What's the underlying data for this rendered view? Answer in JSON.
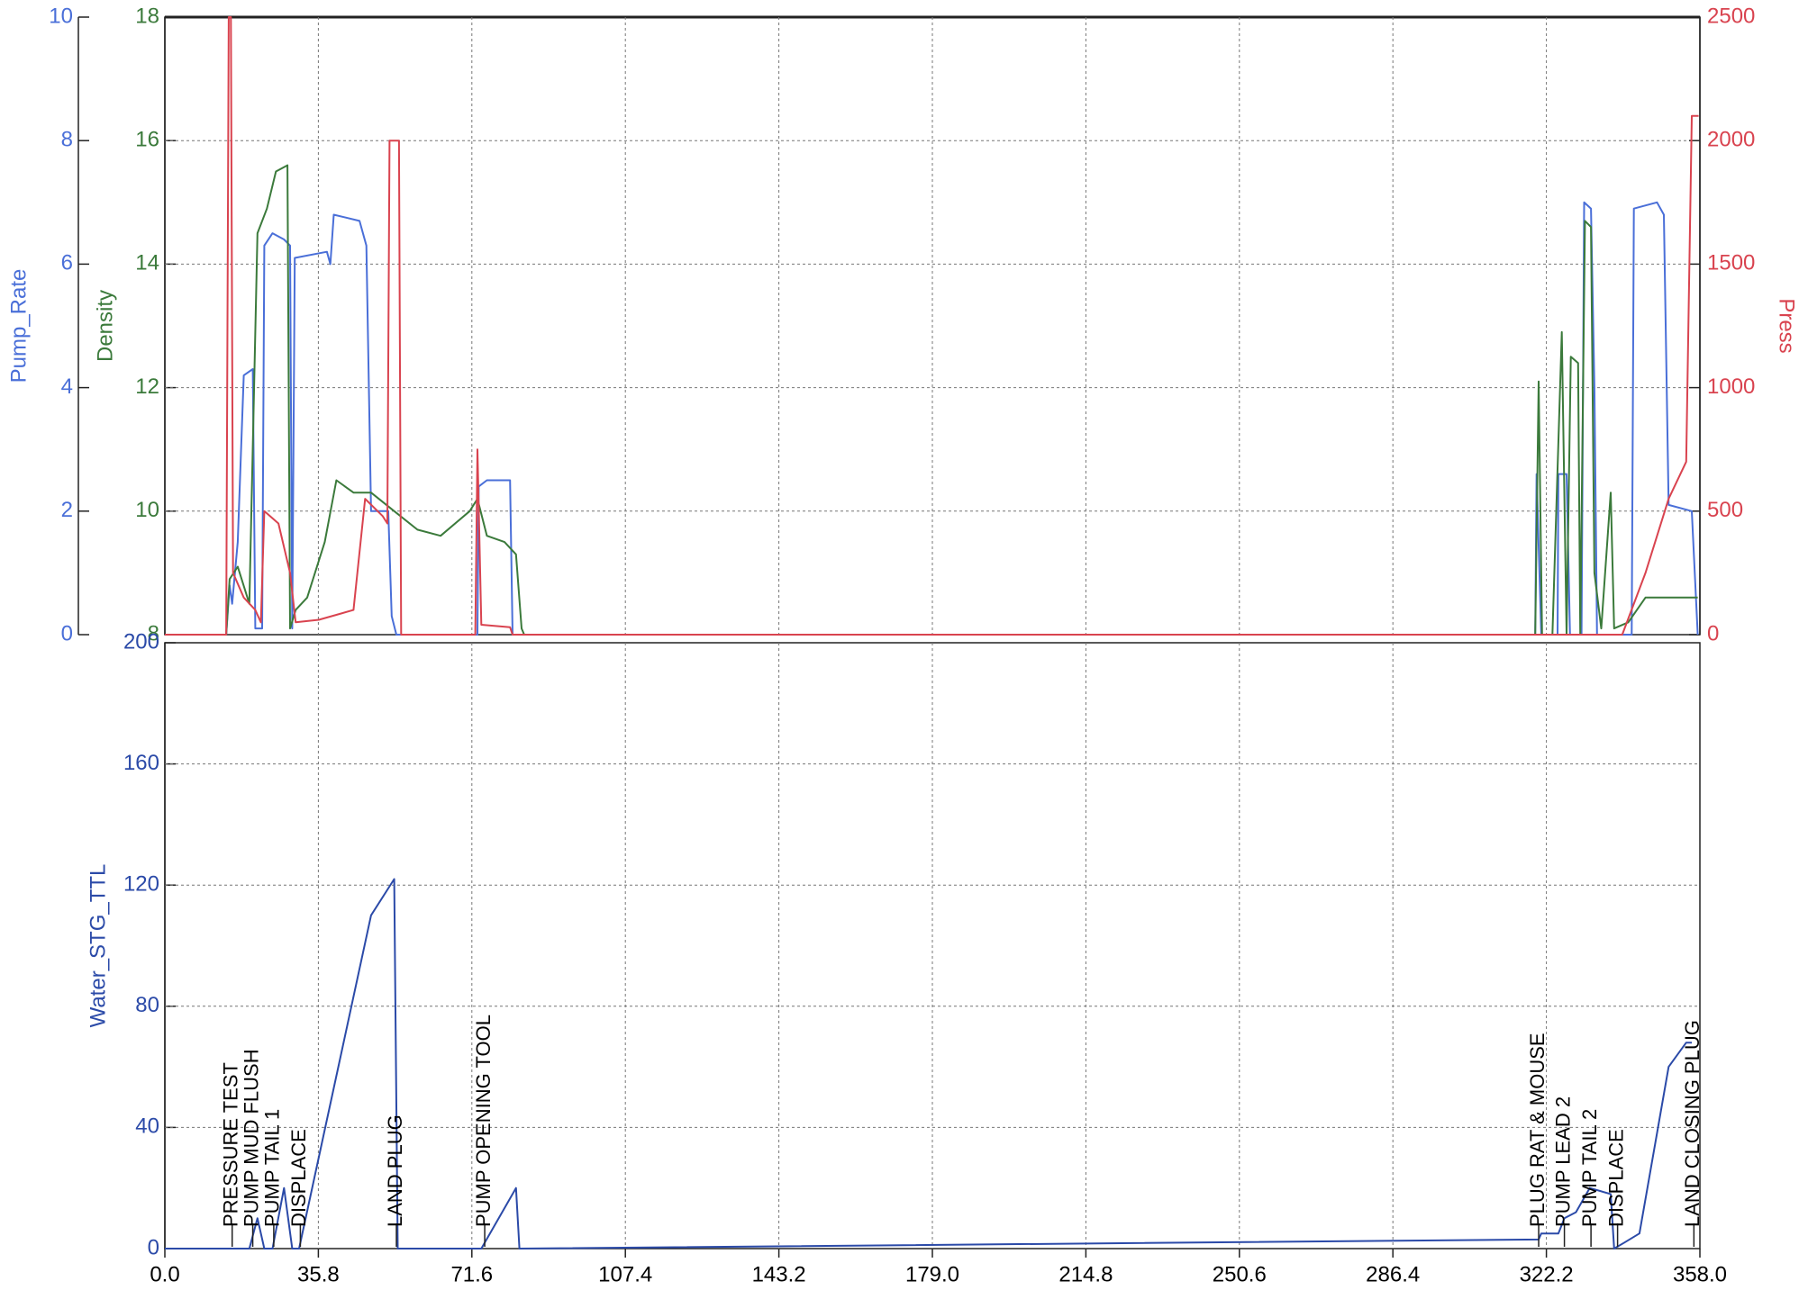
{
  "chart_data": [
    {
      "type": "line",
      "xlim": [
        0,
        358
      ],
      "ylim": [
        0,
        10
      ],
      "yticks": [
        0,
        2,
        4,
        6,
        8,
        10
      ],
      "y2lim": [
        8,
        18
      ],
      "y2ticks": [
        8,
        10,
        12,
        14,
        16,
        18
      ],
      "y3lim": [
        0,
        2500
      ],
      "y3ticks": [
        0,
        500,
        1000,
        1500,
        2000,
        2500
      ],
      "grid": true,
      "series": [
        {
          "name": "Pump_Rate",
          "color": "#4a6fd8",
          "axis": "y",
          "x": [
            0,
            14.3,
            15.1,
            15.7,
            17.0,
            18.4,
            20.5,
            21.1,
            22.7,
            23.2,
            25.1,
            27.8,
            29.2,
            29.7,
            30.3,
            37.8,
            38.6,
            39.4,
            45.4,
            47.0,
            48.1,
            52.1,
            52.9,
            54.0,
            72.9,
            73.2,
            75.1,
            80.5,
            81.1,
            319.6,
            319.9,
            321.0,
            324.8,
            325.0,
            326.9,
            327.7,
            330.4,
            331.0,
            332.6,
            333.4,
            334.0,
            342.1,
            342.6,
            348.0,
            349.6,
            350.7,
            356.1,
            357.5
          ],
          "values": [
            0,
            0,
            0.8,
            0.5,
            1.5,
            4.2,
            4.3,
            0.1,
            0.1,
            6.3,
            6.5,
            6.4,
            6.3,
            0.1,
            6.1,
            6.2,
            6.0,
            6.8,
            6.7,
            6.3,
            2.0,
            2.0,
            0.3,
            0,
            0,
            2.4,
            2.5,
            2.5,
            0,
            0,
            2.6,
            0,
            0,
            2.6,
            2.6,
            0,
            0,
            7.0,
            6.9,
            4.0,
            0,
            0,
            6.9,
            7.0,
            6.8,
            2.1,
            2.0,
            0
          ]
        },
        {
          "name": "Density",
          "color": "#3b7a3b",
          "axis": "y2",
          "x": [
            0,
            14.3,
            15.1,
            17.0,
            19.7,
            21.6,
            23.8,
            25.9,
            28.6,
            29.2,
            30.5,
            33.2,
            37.3,
            40.0,
            44.0,
            48.1,
            53.5,
            58.9,
            64.3,
            71.1,
            72.9,
            75.1,
            79.2,
            81.9,
            83.2,
            83.8,
            319.6,
            320.4,
            321.2,
            323.6,
            325.8,
            326.9,
            327.9,
            329.6,
            330.1,
            331.2,
            332.6,
            333.4,
            335.0,
            337.2,
            338.0,
            341.3,
            345.3,
            357.5
          ],
          "values": [
            8,
            8,
            8.9,
            9.1,
            8.5,
            14.5,
            14.9,
            15.5,
            15.6,
            8.1,
            8.4,
            8.6,
            9.5,
            10.5,
            10.3,
            10.3,
            10.0,
            9.7,
            9.6,
            10.0,
            10.2,
            9.6,
            9.5,
            9.3,
            8.1,
            8.0,
            8.0,
            12.1,
            8.0,
            8.0,
            12.9,
            8.0,
            12.5,
            12.4,
            8.0,
            14.7,
            14.6,
            9.0,
            8.1,
            10.3,
            8.1,
            8.2,
            8.6,
            8.6
          ]
        },
        {
          "name": "Press",
          "color": "#d9434f",
          "axis": "y3",
          "x": [
            0,
            14.3,
            14.9,
            15.4,
            15.9,
            18.4,
            21.1,
            22.4,
            23.2,
            26.5,
            29.2,
            30.5,
            35.9,
            40.0,
            44.0,
            46.7,
            50.8,
            51.9,
            52.4,
            54.6,
            55.1,
            72.4,
            72.9,
            73.8,
            80.5,
            81.1,
            339.9,
            345.3,
            350.7,
            354.8,
            356.1,
            357.7
          ],
          "values": [
            0,
            0,
            2500,
            2500,
            250,
            150,
            100,
            50,
            500,
            450,
            250,
            50,
            60,
            80,
            100,
            550,
            480,
            450,
            2000,
            2000,
            0,
            0,
            750,
            40,
            30,
            0,
            0,
            250,
            550,
            700,
            2100,
            2100
          ]
        }
      ]
    },
    {
      "type": "line",
      "xlim": [
        0,
        358
      ],
      "xticks": [
        {
          "value": 0,
          "label": "0.0"
        },
        35.8,
        71.6,
        107.4,
        143.2,
        {
          "value": 179,
          "label": "179.0"
        },
        214.8,
        250.6,
        286.4,
        322.2,
        {
          "value": 358,
          "label": "358.0"
        }
      ],
      "ylim": [
        0,
        200
      ],
      "yticks": [
        0,
        40,
        80,
        120,
        160,
        200
      ],
      "grid": true,
      "series": [
        {
          "name": "Water_STG_TTL",
          "color": "#2b4aa8",
          "axis": "y",
          "x": [
            0,
            15.7,
            19.7,
            21.6,
            23.2,
            25.1,
            27.8,
            29.7,
            31.3,
            48.1,
            53.5,
            54.3,
            73.8,
            81.9,
            82.7,
            320.4,
            321.0,
            325.0,
            326.4,
            329.1,
            332.3,
            337.2,
            338.0,
            340.4,
            343.9,
            350.7,
            354.8,
            356.1
          ],
          "values": [
            0,
            0,
            0,
            10,
            0,
            0,
            20,
            0,
            0,
            110,
            122,
            0,
            0,
            20,
            0,
            3,
            5,
            5,
            10,
            12,
            20,
            18,
            0,
            2,
            5,
            60,
            68,
            68
          ]
        }
      ],
      "annotations": [
        {
          "text": "PRESSURE TEST",
          "x": 15.7
        },
        {
          "text": "PUMP MUD FLUSH",
          "x": 20.5
        },
        {
          "text": "PUMP TAIL 1",
          "x": 25.4
        },
        {
          "text": "DISPLACE",
          "x": 31.6
        },
        {
          "text": "LAND PLUG",
          "x": 54.0
        },
        {
          "text": "PUMP OPENING TOOL",
          "x": 74.6
        },
        {
          "text": "PLUG RAT & MOUSE",
          "x": 320.4
        },
        {
          "text": "PUMP LEAD 2",
          "x": 326.4
        },
        {
          "text": "PUMP TAIL 2",
          "x": 332.6
        },
        {
          "text": "DISPLACE",
          "x": 338.8
        },
        {
          "text": "LAND CLOSING PLUG",
          "x": 356.6
        }
      ]
    }
  ]
}
